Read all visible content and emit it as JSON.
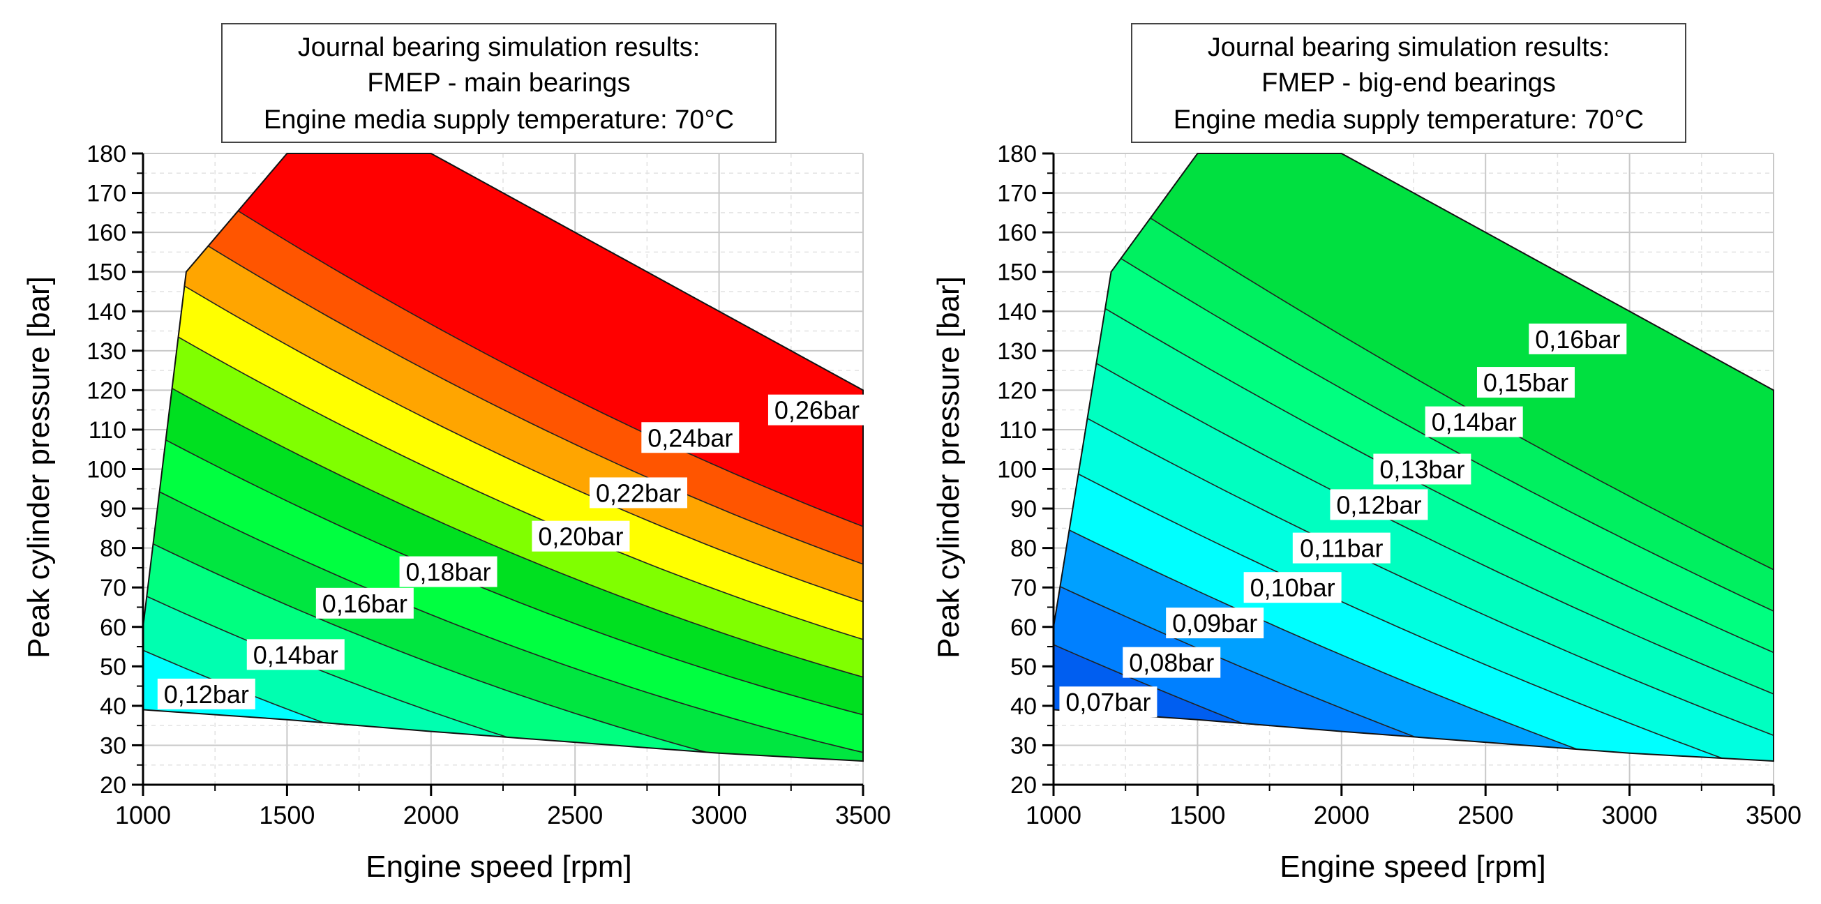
{
  "chart_data": [
    {
      "type": "contour",
      "title_lines": [
        "Journal bearing simulation results:",
        "FMEP - main bearings",
        "Engine media supply temperature: 70°C"
      ],
      "xlabel": "Engine speed [rpm]",
      "ylabel": "Peak cylinder pressure [bar]",
      "xlim": [
        1000,
        3500
      ],
      "ylim": [
        20,
        180
      ],
      "xticks": [
        "1000",
        "1500",
        "2000",
        "2500",
        "3000",
        "3500"
      ],
      "yticks": [
        "20",
        "30",
        "40",
        "50",
        "60",
        "70",
        "80",
        "90",
        "100",
        "110",
        "120",
        "130",
        "140",
        "150",
        "160",
        "170",
        "180"
      ],
      "domain": [
        [
          1000,
          39
        ],
        [
          1000,
          60
        ],
        [
          1150,
          150
        ],
        [
          1500,
          180
        ],
        [
          2000,
          180
        ],
        [
          3000,
          140
        ],
        [
          3500,
          120
        ],
        [
          3500,
          26
        ],
        [
          3000,
          28
        ],
        [
          2000,
          33.5
        ],
        [
          1500,
          36.5
        ]
      ],
      "levels": [
        {
          "value": 0.12,
          "color": "#00ffff",
          "label": "0,12bar",
          "label_at": [
            1220,
            43
          ]
        },
        {
          "value": 0.13,
          "color": "#00ffb0",
          "label": "",
          "label_at": null
        },
        {
          "value": 0.14,
          "color": "#00ff80",
          "label": "0,14bar",
          "label_at": [
            1530,
            53
          ]
        },
        {
          "value": 0.15,
          "color": "#00e640",
          "label": "",
          "label_at": null
        },
        {
          "value": 0.16,
          "color": "#00ff40",
          "label": "0,16bar",
          "label_at": [
            1770,
            66
          ]
        },
        {
          "value": 0.17,
          "color": "#00e020",
          "label": "",
          "label_at": null
        },
        {
          "value": 0.18,
          "color": "#80ff00",
          "label": "0,18bar",
          "label_at": [
            2060,
            74
          ]
        },
        {
          "value": 0.2,
          "color": "#ffff00",
          "label": "0,20bar",
          "label_at": [
            2520,
            83
          ]
        },
        {
          "value": 0.22,
          "color": "#ffa500",
          "label": "0,22bar",
          "label_at": [
            2720,
            94
          ]
        },
        {
          "value": 0.24,
          "color": "#ff5500",
          "label": "0,24bar",
          "label_at": [
            2900,
            108
          ]
        },
        {
          "value": 0.26,
          "color": "#ff0000",
          "label": "0,26bar",
          "label_at": [
            3340,
            115
          ]
        }
      ]
    },
    {
      "type": "contour",
      "title_lines": [
        "Journal bearing simulation results:",
        "FMEP - big-end bearings",
        "Engine media supply temperature: 70°C"
      ],
      "xlabel": "Engine speed [rpm]",
      "ylabel": "Peak cylinder pressure [bar]",
      "xlim": [
        1000,
        3500
      ],
      "ylim": [
        20,
        180
      ],
      "xticks": [
        "1000",
        "1500",
        "2000",
        "2500",
        "3000",
        "3500"
      ],
      "yticks": [
        "20",
        "30",
        "40",
        "50",
        "60",
        "70",
        "80",
        "90",
        "100",
        "110",
        "120",
        "130",
        "140",
        "150",
        "160",
        "170",
        "180"
      ],
      "domain": [
        [
          1000,
          39
        ],
        [
          1000,
          60
        ],
        [
          1200,
          150
        ],
        [
          1500,
          180
        ],
        [
          2000,
          180
        ],
        [
          3000,
          140
        ],
        [
          3500,
          120
        ],
        [
          3500,
          26
        ],
        [
          3000,
          28
        ],
        [
          2000,
          33.5
        ],
        [
          1500,
          36.5
        ]
      ],
      "levels": [
        {
          "value": 0.07,
          "color": "#005ef0",
          "label": "0,07bar",
          "label_at": [
            1190,
            41
          ]
        },
        {
          "value": 0.08,
          "color": "#0080ff",
          "label": "0,08bar",
          "label_at": [
            1410,
            51
          ]
        },
        {
          "value": 0.09,
          "color": "#00a0ff",
          "label": "0,09bar",
          "label_at": [
            1560,
            61
          ]
        },
        {
          "value": 0.1,
          "color": "#00ffff",
          "label": "0,10bar",
          "label_at": [
            1830,
            70
          ]
        },
        {
          "value": 0.11,
          "color": "#00ffe0",
          "label": "0,11bar",
          "label_at": [
            2000,
            80
          ]
        },
        {
          "value": 0.12,
          "color": "#00ffc0",
          "label": "0,12bar",
          "label_at": [
            2130,
            91
          ]
        },
        {
          "value": 0.13,
          "color": "#00ffa0",
          "label": "0,13bar",
          "label_at": [
            2280,
            100
          ]
        },
        {
          "value": 0.14,
          "color": "#00ff80",
          "label": "0,14bar",
          "label_at": [
            2460,
            112
          ]
        },
        {
          "value": 0.15,
          "color": "#00f060",
          "label": "0,15bar",
          "label_at": [
            2640,
            122
          ]
        },
        {
          "value": 0.16,
          "color": "#00e040",
          "label": "0,16bar",
          "label_at": [
            2820,
            133
          ]
        }
      ]
    }
  ]
}
